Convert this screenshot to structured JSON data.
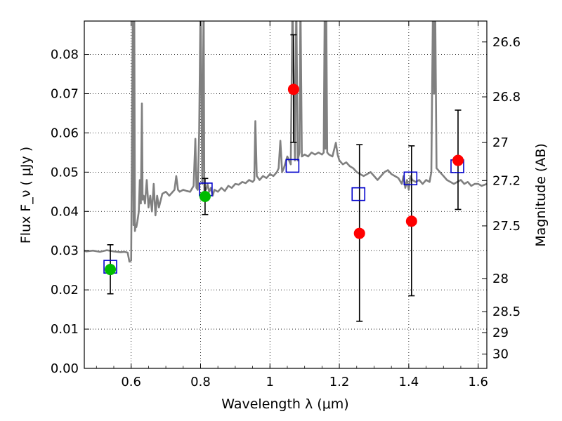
{
  "chart_data": {
    "type": "scatter",
    "title": "",
    "xlabel": "Wavelength  λ (μm)",
    "ylabel": "Flux  F_ν  ( μJy )",
    "ylabel_right": "Magnitude (AB)",
    "xlim": [
      0.465,
      1.625
    ],
    "ylim": [
      0.0,
      0.0885
    ],
    "grid": true,
    "xticks": [
      0.6,
      0.8,
      1.0,
      1.2,
      1.4,
      1.6
    ],
    "xtick_labels": [
      "0.6",
      "0.8",
      "1",
      "1.2",
      "1.4",
      "1.6"
    ],
    "yticks": [
      0.0,
      0.01,
      0.02,
      0.03,
      0.04,
      0.05,
      0.06,
      0.07,
      0.08
    ],
    "ytick_labels": [
      "0.00",
      "0.01",
      "0.02",
      "0.03",
      "0.04",
      "0.05",
      "0.06",
      "0.07",
      "0.08"
    ],
    "right_ticks": [
      {
        "label": "26.6",
        "mag": 26.6
      },
      {
        "label": "26.8",
        "mag": 26.8
      },
      {
        "label": "27",
        "mag": 27.0
      },
      {
        "label": "27.2",
        "mag": 27.2
      },
      {
        "label": "27.5",
        "mag": 27.5
      },
      {
        "label": "28",
        "mag": 28.0
      },
      {
        "label": "28.5",
        "mag": 28.5
      },
      {
        "label": "29",
        "mag": 29.0
      },
      {
        "label": "30",
        "mag": 30.0
      }
    ],
    "colors": {
      "spectrum": "#808080",
      "model": "#0000cc",
      "observed": "#ff0000",
      "upper": "#00bb00",
      "errorbar": "#000000"
    },
    "series": [
      {
        "name": "spectrum",
        "kind": "line",
        "x": [
          0.465,
          0.47,
          0.49,
          0.51,
          0.53,
          0.55,
          0.57,
          0.58,
          0.59,
          0.595,
          0.6,
          0.605,
          0.607,
          0.609,
          0.611,
          0.613,
          0.615,
          0.618,
          0.622,
          0.625,
          0.628,
          0.631,
          0.633,
          0.636,
          0.64,
          0.645,
          0.65,
          0.655,
          0.66,
          0.665,
          0.67,
          0.675,
          0.68,
          0.69,
          0.7,
          0.71,
          0.72,
          0.725,
          0.73,
          0.735,
          0.74,
          0.75,
          0.76,
          0.77,
          0.78,
          0.785,
          0.788,
          0.792,
          0.796,
          0.8,
          0.805,
          0.809,
          0.811,
          0.813,
          0.816,
          0.82,
          0.825,
          0.83,
          0.835,
          0.84,
          0.85,
          0.86,
          0.87,
          0.88,
          0.89,
          0.9,
          0.91,
          0.92,
          0.93,
          0.94,
          0.95,
          0.955,
          0.958,
          0.962,
          0.97,
          0.98,
          0.99,
          1.0,
          1.01,
          1.02,
          1.025,
          1.03,
          1.035,
          1.04,
          1.05,
          1.06,
          1.065,
          1.072,
          1.076,
          1.08,
          1.085,
          1.088,
          1.092,
          1.1,
          1.11,
          1.12,
          1.13,
          1.14,
          1.15,
          1.155,
          1.158,
          1.16,
          1.162,
          1.165,
          1.17,
          1.18,
          1.19,
          1.195,
          1.2,
          1.21,
          1.22,
          1.23,
          1.24,
          1.25,
          1.26,
          1.27,
          1.28,
          1.29,
          1.3,
          1.31,
          1.32,
          1.33,
          1.34,
          1.35,
          1.36,
          1.37,
          1.38,
          1.385,
          1.39,
          1.395,
          1.4,
          1.405,
          1.41,
          1.42,
          1.43,
          1.44,
          1.45,
          1.46,
          1.465,
          1.47,
          1.473,
          1.476,
          1.48,
          1.49,
          1.5,
          1.51,
          1.52,
          1.53,
          1.54,
          1.55,
          1.56,
          1.57,
          1.58,
          1.59,
          1.6,
          1.61,
          1.625
        ],
        "y": [
          0.03,
          0.0298,
          0.03,
          0.0297,
          0.0301,
          0.0298,
          0.0296,
          0.0297,
          0.0295,
          0.0272,
          0.0275,
          0.094,
          0.0365,
          0.094,
          0.035,
          0.0365,
          0.036,
          0.0375,
          0.04,
          0.048,
          0.042,
          0.0675,
          0.043,
          0.044,
          0.042,
          0.048,
          0.041,
          0.044,
          0.04,
          0.047,
          0.039,
          0.044,
          0.041,
          0.0445,
          0.045,
          0.044,
          0.045,
          0.0455,
          0.049,
          0.0455,
          0.045,
          0.0455,
          0.0452,
          0.045,
          0.0465,
          0.0585,
          0.046,
          0.0455,
          0.06,
          0.094,
          0.047,
          0.094,
          0.043,
          0.046,
          0.0455,
          0.047,
          0.045,
          0.046,
          0.044,
          0.0455,
          0.045,
          0.046,
          0.0452,
          0.0465,
          0.046,
          0.047,
          0.0468,
          0.0475,
          0.0472,
          0.048,
          0.0475,
          0.048,
          0.063,
          0.049,
          0.048,
          0.049,
          0.0485,
          0.0495,
          0.049,
          0.05,
          0.051,
          0.058,
          0.05,
          0.051,
          0.054,
          0.052,
          0.094,
          0.053,
          0.094,
          0.053,
          0.055,
          0.094,
          0.054,
          0.0545,
          0.054,
          0.055,
          0.0545,
          0.055,
          0.0545,
          0.055,
          0.094,
          0.056,
          0.094,
          0.055,
          0.0545,
          0.054,
          0.0575,
          0.0545,
          0.053,
          0.052,
          0.0525,
          0.0515,
          0.051,
          0.05,
          0.0495,
          0.049,
          0.0495,
          0.05,
          0.049,
          0.048,
          0.049,
          0.05,
          0.0505,
          0.0495,
          0.049,
          0.0485,
          0.047,
          0.049,
          0.046,
          0.048,
          0.0455,
          0.049,
          0.048,
          0.0475,
          0.048,
          0.047,
          0.048,
          0.0475,
          0.05,
          0.094,
          0.07,
          0.094,
          0.051,
          0.05,
          0.049,
          0.048,
          0.0475,
          0.047,
          0.0475,
          0.048,
          0.047,
          0.0475,
          0.0465,
          0.047,
          0.047,
          0.0465,
          0.047
        ]
      },
      {
        "name": "model",
        "kind": "open-square",
        "x": [
          0.54,
          0.815,
          1.065,
          1.255,
          1.405,
          1.54
        ],
        "y": [
          0.0259,
          0.0456,
          0.0516,
          0.0444,
          0.0484,
          0.0515
        ]
      },
      {
        "name": "observed",
        "kind": "filled-circle",
        "x": [
          1.068,
          1.258,
          1.408,
          1.542
        ],
        "y": [
          0.0711,
          0.0344,
          0.0375,
          0.053
        ],
        "yerr_low": [
          0.0576,
          0.012,
          0.0185,
          0.0405
        ],
        "yerr_high": [
          0.085,
          0.057,
          0.0567,
          0.0658
        ]
      },
      {
        "name": "upper",
        "kind": "filled-circle",
        "x": [
          0.54,
          0.813
        ],
        "y": [
          0.0252,
          0.0438
        ],
        "yerr_low": [
          0.019,
          0.0392
        ],
        "yerr_high": [
          0.0315,
          0.0484
        ]
      }
    ]
  }
}
